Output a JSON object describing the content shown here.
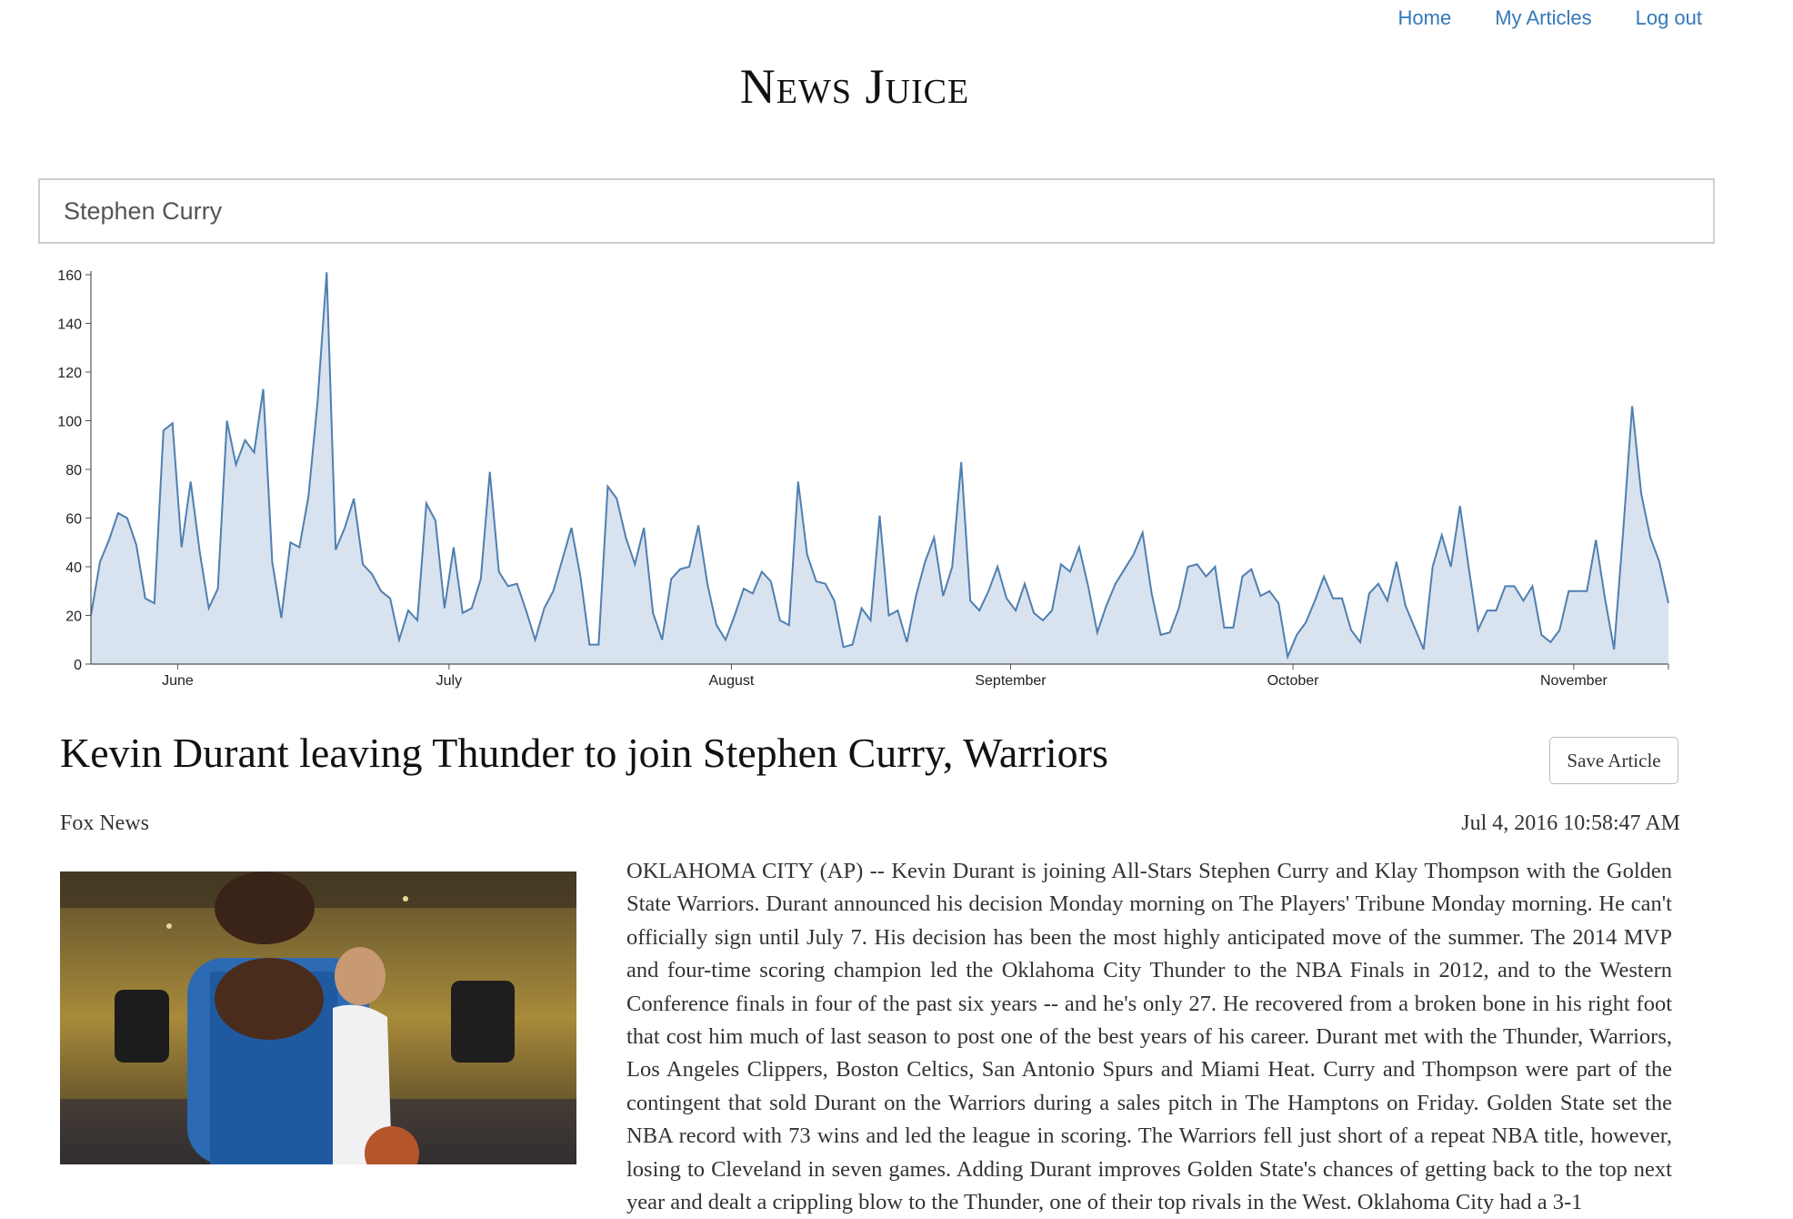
{
  "nav": {
    "home": "Home",
    "my_articles": "My Articles",
    "logout": "Log out"
  },
  "brand": {
    "title": "News Juice"
  },
  "search": {
    "value": "Stephen Curry"
  },
  "chart_data": {
    "type": "area",
    "y_ticks": [
      0,
      20,
      40,
      60,
      80,
      100,
      120,
      140,
      160
    ],
    "ylim": [
      0,
      160
    ],
    "x_ticks": [
      "June",
      "July",
      "August",
      "September",
      "October",
      "November"
    ],
    "grid": false,
    "line_color": "#4f7fb0",
    "fill_color": "#d9e2ef",
    "series": [
      {
        "values": [
          20,
          42,
          51,
          62,
          60,
          49,
          27,
          25,
          96,
          99,
          48,
          75,
          46,
          23,
          31,
          100,
          82,
          92,
          87,
          113,
          42,
          19,
          50,
          48,
          69,
          108,
          161,
          47,
          56,
          68,
          41,
          37,
          30,
          27,
          10,
          22,
          18,
          66,
          59,
          23,
          48,
          21,
          23,
          35,
          79,
          38,
          32,
          33,
          22,
          10,
          23,
          30,
          43,
          56,
          36,
          8,
          8,
          73,
          68,
          52,
          41,
          56,
          21,
          10,
          35,
          39,
          40,
          57,
          33,
          16,
          10,
          20,
          31,
          29,
          38,
          34,
          18,
          16,
          75,
          45,
          34,
          33,
          26,
          7,
          8,
          23,
          18,
          61,
          20,
          22,
          9,
          28,
          42,
          52,
          28,
          40,
          83,
          26,
          22,
          30,
          40,
          27,
          22,
          33,
          21,
          18,
          22,
          41,
          38,
          48,
          32,
          13,
          24,
          33,
          39,
          45,
          54,
          29,
          12,
          13,
          23,
          40,
          41,
          36,
          40,
          15,
          15,
          36,
          39,
          28,
          30,
          25,
          3,
          12,
          17,
          26,
          36,
          27,
          27,
          14,
          9,
          29,
          33,
          26,
          42,
          24,
          15,
          6,
          40,
          53,
          40,
          65,
          39,
          14,
          22,
          22,
          32,
          32,
          26,
          32,
          12,
          9,
          14,
          30,
          30,
          30,
          51,
          27,
          6,
          54,
          106,
          70,
          52,
          42,
          25
        ]
      }
    ]
  },
  "article": {
    "title": "Kevin Durant leaving Thunder to join Stephen Curry, Warriors",
    "save_label": "Save Article",
    "source": "Fox News",
    "date": "Jul 4, 2016 10:58:47 AM",
    "body": "OKLAHOMA CITY (AP) -- Kevin Durant is joining All-Stars Stephen Curry and Klay Thompson with the Golden State Warriors. Durant announced his decision Monday morning on The Players' Tribune Monday morning. He can't officially sign until July 7. His decision has been the most highly anticipated move of the summer. The 2014 MVP and four-time scoring champion led the Oklahoma City Thunder to the NBA Finals in 2012, and to the Western Conference finals in four of the past six years -- and he's only 27. He recovered from a broken bone in his right foot that cost him much of last season to post one of the best years of his career. Durant met with the Thunder, Warriors, Los Angeles Clippers, Boston Celtics, San Antonio Spurs and Miami Heat. Curry and Thompson were part of the contingent that sold Durant on the Warriors during a sales pitch in The Hamptons on Friday. Golden State set the NBA record with 73 wins and led the league in scoring. The Warriors fell just short of a repeat NBA title, however, losing to Cleveland in seven games. Adding Durant improves Golden State's chances of getting back to the top next year and dealt a crippling blow to the Thunder, one of their top rivals in the West. Oklahoma City had a 3-1"
  }
}
